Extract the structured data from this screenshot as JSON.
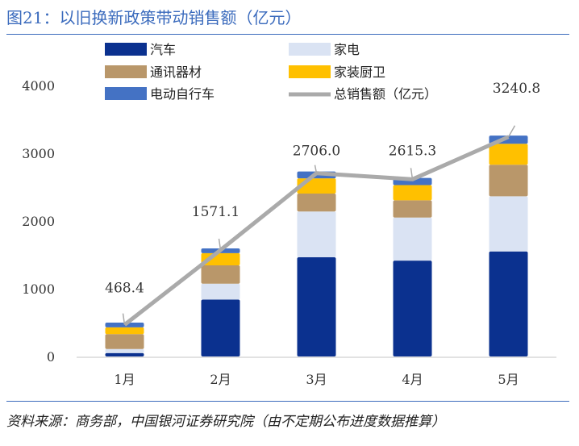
{
  "header": {
    "title": "图21：以旧换新政策带动销售额（亿元）"
  },
  "footer": {
    "source": "资料来源：商务部，中国银河证券研究院（由不定期公布进度数据推算）"
  },
  "chart_data": {
    "type": "bar",
    "stacked": true,
    "categories": [
      "1月",
      "2月",
      "3月",
      "4月",
      "5月"
    ],
    "ylim": [
      0,
      4000
    ],
    "yticks": [
      "0",
      "1000",
      "2000",
      "3000",
      "4000"
    ],
    "grid": false,
    "legend_position": "top",
    "series": [
      {
        "name": "汽车",
        "color": "#0b318f",
        "values": [
          50,
          840,
          1465,
          1415,
          1550
        ]
      },
      {
        "name": "家电",
        "color": "#dae3f3",
        "values": [
          60,
          235,
          675,
          635,
          815
        ]
      },
      {
        "name": "通讯器材",
        "color": "#b9976a",
        "values": [
          220,
          270,
          265,
          255,
          465
        ]
      },
      {
        "name": "家装厨卫",
        "color": "#ffc000",
        "values": [
          100,
          180,
          225,
          225,
          310
        ]
      },
      {
        "name": "电动自行车",
        "color": "#4472c4",
        "values": [
          70,
          70,
          100,
          105,
          120
        ]
      }
    ],
    "line": {
      "name": "总销售额（亿元）",
      "color": "#aaaaaa",
      "values": [
        468.4,
        1571.1,
        2706.0,
        2615.3,
        3240.8
      ],
      "labels": [
        "468.4",
        "1571.1",
        "2706.0",
        "2615.3",
        "3240.8"
      ]
    }
  }
}
